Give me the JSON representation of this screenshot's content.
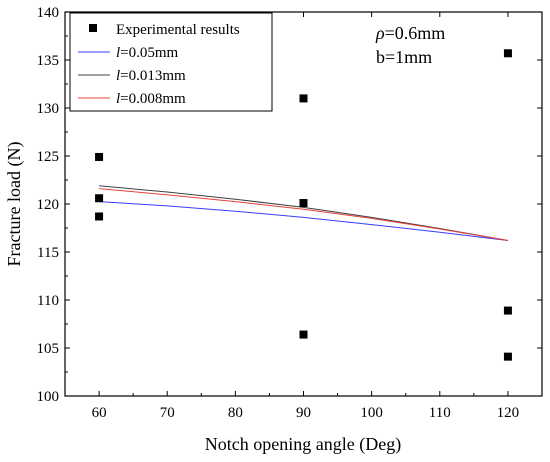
{
  "chart_data": {
    "type": "scatter",
    "xlabel": "Notch opening angle (Deg)",
    "ylabel": "Fracture load (N)",
    "xlim": [
      55,
      125
    ],
    "ylim": [
      100,
      140
    ],
    "xticks": [
      60,
      70,
      80,
      90,
      100,
      110,
      120
    ],
    "yticks": [
      100,
      105,
      110,
      115,
      120,
      125,
      130,
      135,
      140
    ],
    "grid": false,
    "legend_position": "top-left",
    "annotations": [
      "ρ=0.6mm",
      "b=1mm"
    ],
    "series": [
      {
        "name": "Experimental results",
        "kind": "scatter",
        "marker": "square",
        "color": "#000000",
        "points": [
          [
            60,
            124.9
          ],
          [
            60,
            120.6
          ],
          [
            60,
            118.7
          ],
          [
            90,
            131.0
          ],
          [
            90,
            120.1
          ],
          [
            90,
            106.4
          ],
          [
            120,
            135.7
          ],
          [
            120,
            108.9
          ],
          [
            120,
            104.1
          ]
        ]
      },
      {
        "name": "l=0.05mm",
        "kind": "line",
        "color": "#3b3bff",
        "points": [
          [
            60,
            120.25
          ],
          [
            70,
            119.8
          ],
          [
            80,
            119.25
          ],
          [
            90,
            118.6
          ],
          [
            100,
            117.85
          ],
          [
            110,
            117.05
          ],
          [
            120,
            116.2
          ]
        ]
      },
      {
        "name": "l=0.013mm",
        "kind": "line",
        "color": "#404040",
        "points": [
          [
            60,
            121.9
          ],
          [
            70,
            121.25
          ],
          [
            80,
            120.5
          ],
          [
            90,
            119.65
          ],
          [
            100,
            118.6
          ],
          [
            110,
            117.45
          ],
          [
            120,
            116.2
          ]
        ]
      },
      {
        "name": "l=0.008mm",
        "kind": "line",
        "color": "#e8413b",
        "points": [
          [
            60,
            121.6
          ],
          [
            70,
            120.95
          ],
          [
            80,
            120.25
          ],
          [
            90,
            119.45
          ],
          [
            100,
            118.5
          ],
          [
            110,
            117.4
          ],
          [
            120,
            116.2
          ]
        ]
      }
    ]
  },
  "legend": {
    "items": [
      {
        "symbol": "square",
        "label": "Experimental results",
        "color": "#000000"
      },
      {
        "symbol": "line",
        "prefix": "l",
        "suffix": "=0.05mm",
        "color": "#3b3bff"
      },
      {
        "symbol": "line",
        "prefix": "l",
        "suffix": "=0.013mm",
        "color": "#404040"
      },
      {
        "symbol": "line",
        "prefix": "l",
        "suffix": "=0.008mm",
        "color": "#e8413b"
      }
    ]
  },
  "annotation": {
    "rho_symbol": "ρ",
    "rho_value": "=0.6mm",
    "b_text": "b=1mm"
  }
}
